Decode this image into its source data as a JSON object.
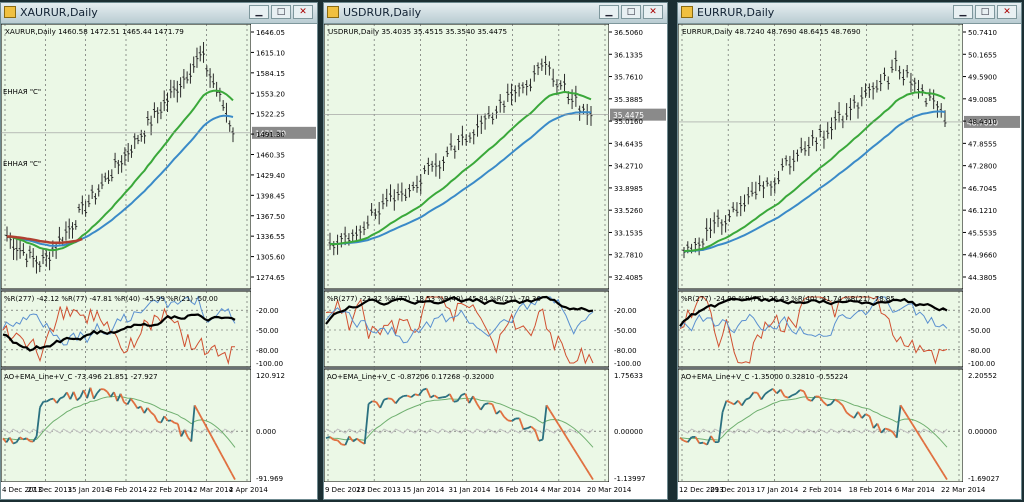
{
  "window_buttons": {
    "minimize": "▁",
    "maximize": "□",
    "close": "✕"
  },
  "windows": [
    {
      "id": "xau",
      "title": "XAURUR,Daily",
      "ohlc": "XAURUR,Daily  1460.58 1472.51 1465.44 1471.79",
      "price_ticks": [
        "1646.05",
        "1615.10",
        "1584.15",
        "1553.20",
        "1522.25",
        "1491.30",
        "1460.35",
        "1429.40",
        "1398.45",
        "1367.50",
        "1336.55",
        "1305.60",
        "1274.65"
      ],
      "current_price": "1471.79",
      "side_labels": [
        "ЕННАЯ \"C\"",
        "ЕННАЯ \"C\""
      ],
      "wpr_label": "%R(277) -42.12 %R(77) -47.81 %R(40) -45.99 %R(21) -50.00",
      "wpr_ticks": [
        "-20.00",
        "-50.00",
        "-80.00",
        "-100.00"
      ],
      "ao_label": "AO+EMA_Line+V_C -73.496 21.851 -27.927",
      "ao_ticks": [
        "120.912",
        "0.000",
        "-91.969"
      ],
      "date_ticks": [
        "4 Dec 2013",
        "27 Dec 2013",
        "15 Jan 2014",
        "3 Feb 2014",
        "22 Feb 2014",
        "12 Mar 2014",
        "2 Apr 2014"
      ]
    },
    {
      "id": "usd",
      "title": "USDRUR,Daily",
      "ohlc": "USDRUR,Daily  35.4035 35.4515 35.3540 35.4475",
      "price_ticks": [
        "36.5060",
        "36.1335",
        "35.7610",
        "35.3885",
        "35.0160",
        "34.6435",
        "34.2710",
        "33.8985",
        "33.5260",
        "33.1535",
        "32.7810",
        "32.4085"
      ],
      "current_price": "35.4475",
      "side_labels": [],
      "wpr_label": "%R(277) -23.32 %R(77) -18.53 %R(40) -45.84 %R(21) -70.36",
      "wpr_ticks": [
        "-20.00",
        "-50.00",
        "-80.00",
        "-100.00"
      ],
      "ao_label": "AO+EMA_Line+V_C -0.87206 0.17268 -0.32000",
      "ao_ticks": [
        "1.75633",
        "0.00000",
        "-1.13997"
      ],
      "date_ticks": [
        "9 Dec 2013",
        "27 Dec 2013",
        "15 Jan 2014",
        "31 Jan 2014",
        "16 Feb 2014",
        "4 Mar 2014",
        "20 Mar 2014"
      ]
    },
    {
      "id": "eur",
      "title": "EURRUR,Daily",
      "ohlc": "EURRUR,Daily  48.7240 48.7690 48.6415 48.7690",
      "price_ticks": [
        "50.7410",
        "50.1655",
        "49.5900",
        "49.0085",
        "48.4310",
        "47.8555",
        "47.2800",
        "46.7045",
        "46.1210",
        "45.5535",
        "44.9660",
        "44.3805"
      ],
      "current_price": "48.7690",
      "side_labels": [],
      "wpr_label": "%R(277) -24.08 %R(77) -26.43 %R(40) -41.74 %R(21) -78.85",
      "wpr_ticks": [
        "-20.00",
        "-50.00",
        "-80.00",
        "-100.00"
      ],
      "ao_label": "AO+EMA_Line+V_C -1.35000 0.32810 -0.55224",
      "ao_ticks": [
        "2.20552",
        "0.00000",
        "-1.69027"
      ],
      "date_ticks": [
        "12 Dec 2013",
        "29 Dec 2013",
        "17 Jan 2014",
        "2 Feb 2014",
        "18 Feb 2014",
        "6 Mar 2014",
        "22 Mar 2014"
      ]
    }
  ],
  "colors": {
    "chart_bg": "#ebf8e6",
    "grid": "#505050",
    "candle": "#2a2a2a",
    "ema_green": "#3aa83a",
    "ema_blue": "#3a8ac8",
    "ema_red": "#b04030",
    "wpr_black": "#000000",
    "wpr_red": "#d05030",
    "wpr_blue": "#5a90d0",
    "ao_teal": "#2a7080",
    "ao_orange": "#e07040",
    "ao_green": "#70b070",
    "ao_grey": "#c0c0c0"
  }
}
